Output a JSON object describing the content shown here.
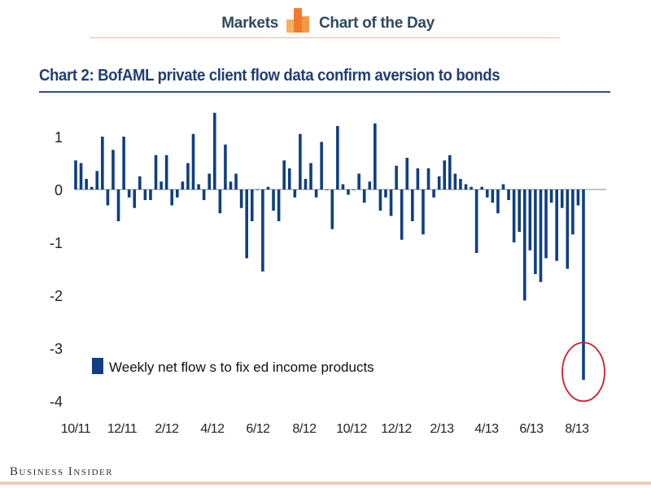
{
  "header": {
    "left_label": "Markets",
    "right_label": "Chart of the Day"
  },
  "colors": {
    "bar": "#0f3f82",
    "circle": "#cc1f2f",
    "header_text": "#2e4a5e",
    "logo_colors": [
      "#f5b060",
      "#f07a2a",
      "#f39a45"
    ]
  },
  "footer": {
    "brand": "Business Insider"
  },
  "chart_data": {
    "type": "bar",
    "title": "Chart 2: BofAML private client flow data confirm aversion to bonds",
    "xlabel": "",
    "ylabel": "",
    "ylim": [
      -4,
      1.5
    ],
    "yticks": [
      1,
      0,
      -1,
      -2,
      -3,
      -4
    ],
    "ytick_labels": [
      "1",
      "0",
      "-1",
      "-2",
      "-3",
      "-4"
    ],
    "xtick_labels": [
      "10/11",
      "12/11",
      "2/12",
      "4/12",
      "6/12",
      "8/12",
      "10/12",
      "12/12",
      "2/13",
      "4/13",
      "6/13",
      "8/13"
    ],
    "legend": {
      "position": "lower-left",
      "entries": [
        "Weekly  net flow s to fix ed income products"
      ]
    },
    "annotation": "circle around the most recent week",
    "series": [
      {
        "name": "Weekly  net flow s to fix ed income products",
        "values": [
          0.55,
          0.5,
          0.2,
          0.05,
          0.35,
          1.0,
          -0.3,
          0.75,
          -0.6,
          1.0,
          -0.15,
          -0.35,
          0.25,
          -0.2,
          -0.2,
          0.65,
          0.15,
          0.65,
          -0.3,
          -0.15,
          0.15,
          0.5,
          1.05,
          0.1,
          -0.2,
          0.3,
          1.45,
          -0.45,
          0.85,
          0.15,
          0.3,
          -0.35,
          -1.3,
          -0.6,
          0.0,
          -1.55,
          0.05,
          -0.4,
          -0.6,
          0.55,
          0.4,
          -0.15,
          1.05,
          0.2,
          0.5,
          -0.15,
          0.9,
          0.0,
          -0.75,
          1.2,
          0.1,
          -0.1,
          0.0,
          0.3,
          -0.25,
          0.15,
          1.25,
          -0.4,
          -0.15,
          -0.5,
          0.45,
          -0.95,
          0.6,
          -0.6,
          0.4,
          -0.85,
          0.4,
          -0.15,
          0.25,
          0.55,
          0.65,
          0.3,
          0.2,
          0.1,
          0.05,
          -1.2,
          0.05,
          -0.15,
          -0.25,
          -0.45,
          0.1,
          -0.2,
          -1.0,
          -0.8,
          -2.1,
          -1.15,
          -1.6,
          -1.75,
          -1.3,
          -0.25,
          -1.35,
          -0.35,
          -1.5,
          -0.85,
          -0.3,
          -3.6
        ]
      }
    ]
  }
}
